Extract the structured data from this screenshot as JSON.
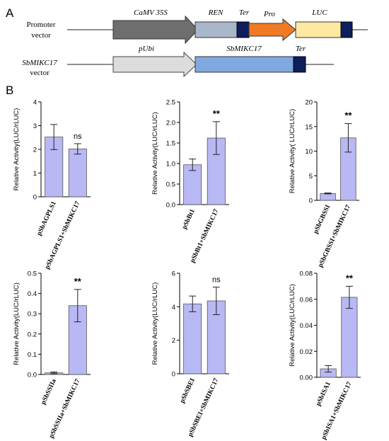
{
  "panel_labels": {
    "a": "A",
    "b": "B"
  },
  "constructs": {
    "promoter_vector": {
      "label_lines": [
        "Promoter",
        "vector"
      ],
      "elements": {
        "camv35s": "CaMV 35S",
        "ren": "REN",
        "ter": "Ter",
        "pro": "Pro",
        "luc": "LUC"
      }
    },
    "sbmikc17_vector": {
      "label_lines": [
        "SbMIKC17",
        "vector"
      ],
      "elements": {
        "pubi": "pUbi",
        "sbmikc17": "SbMIKC17",
        "ter": "Ter"
      }
    }
  },
  "colors": {
    "camv35s": "#6e6e6e",
    "ren": "#aab6c9",
    "ter": "#0d1f5c",
    "pro": "#f07b24",
    "luc": "#fde9a2",
    "pubi": "#dcdcdc",
    "sbmikc17": "#80a9df",
    "bar": "#b8b8f4"
  },
  "chart_data": [
    {
      "type": "bar",
      "ylabel": "Relative Activity(LUC/rLUC)",
      "ylim": [
        0,
        4
      ],
      "yticks": [
        "0",
        "1",
        "2",
        "3",
        "4"
      ],
      "categories": [
        "pSbAGPLS1",
        "pSbAGPLS1+SbMIKC17"
      ],
      "values": [
        2.52,
        2.02
      ],
      "errors": [
        0.53,
        0.22
      ],
      "significance": "ns"
    },
    {
      "type": "bar",
      "ylabel": "Relative Activity(LUC/rLUC)",
      "ylim": [
        0,
        2.5
      ],
      "yticks": [
        "0.0",
        "0.5",
        "1.0",
        "1.5",
        "2.0",
        "2.5"
      ],
      "categories": [
        "pSbBt1",
        "pSbBt1+SbMIKC17"
      ],
      "values": [
        0.97,
        1.62
      ],
      "errors": [
        0.14,
        0.4
      ],
      "significance": "**"
    },
    {
      "type": "bar",
      "ylabel": "Relative Activity( LUC/rLUC)",
      "ylim": [
        0,
        20
      ],
      "yticks": [
        "0",
        "5",
        "10",
        "15",
        "20"
      ],
      "categories": [
        "pSbGBSSI",
        "pSbGBSSI+SbMIKC17"
      ],
      "values": [
        1.4,
        12.7
      ],
      "errors": [
        0.1,
        2.9
      ],
      "significance": "**"
    },
    {
      "type": "bar",
      "ylabel": "Relative Activity(LUC/rLUC)",
      "ylim": [
        0,
        0.5
      ],
      "yticks": [
        "0.0",
        "0.1",
        "0.2",
        "0.3",
        "0.4",
        "0.5"
      ],
      "categories": [
        "pSbSSIIa",
        "pSbSSIIa+SbMIKC17"
      ],
      "values": [
        0.008,
        0.34
      ],
      "errors": [
        0.004,
        0.08
      ],
      "significance": "**"
    },
    {
      "type": "bar",
      "ylabel": "Relative Activity(LUC/rLUC)",
      "ylim": [
        0,
        6
      ],
      "yticks": [
        "0",
        "2",
        "4",
        "6"
      ],
      "categories": [
        "pSbSBEI",
        "pSbSBEI+SbMIKC17"
      ],
      "values": [
        4.17,
        4.35
      ],
      "errors": [
        0.47,
        0.82
      ],
      "significance": "ns"
    },
    {
      "type": "bar",
      "ylabel": "Relative Activity(LUC/rLUC)",
      "ylim": [
        0,
        0.08
      ],
      "yticks": [
        "0.00",
        "0.02",
        "0.04",
        "0.06",
        "0.08"
      ],
      "categories": [
        "pSbISA1",
        "pSbISA1+SbMIKC17"
      ],
      "values": [
        0.0065,
        0.0615
      ],
      "errors": [
        0.0025,
        0.0085
      ],
      "significance": "**"
    }
  ]
}
